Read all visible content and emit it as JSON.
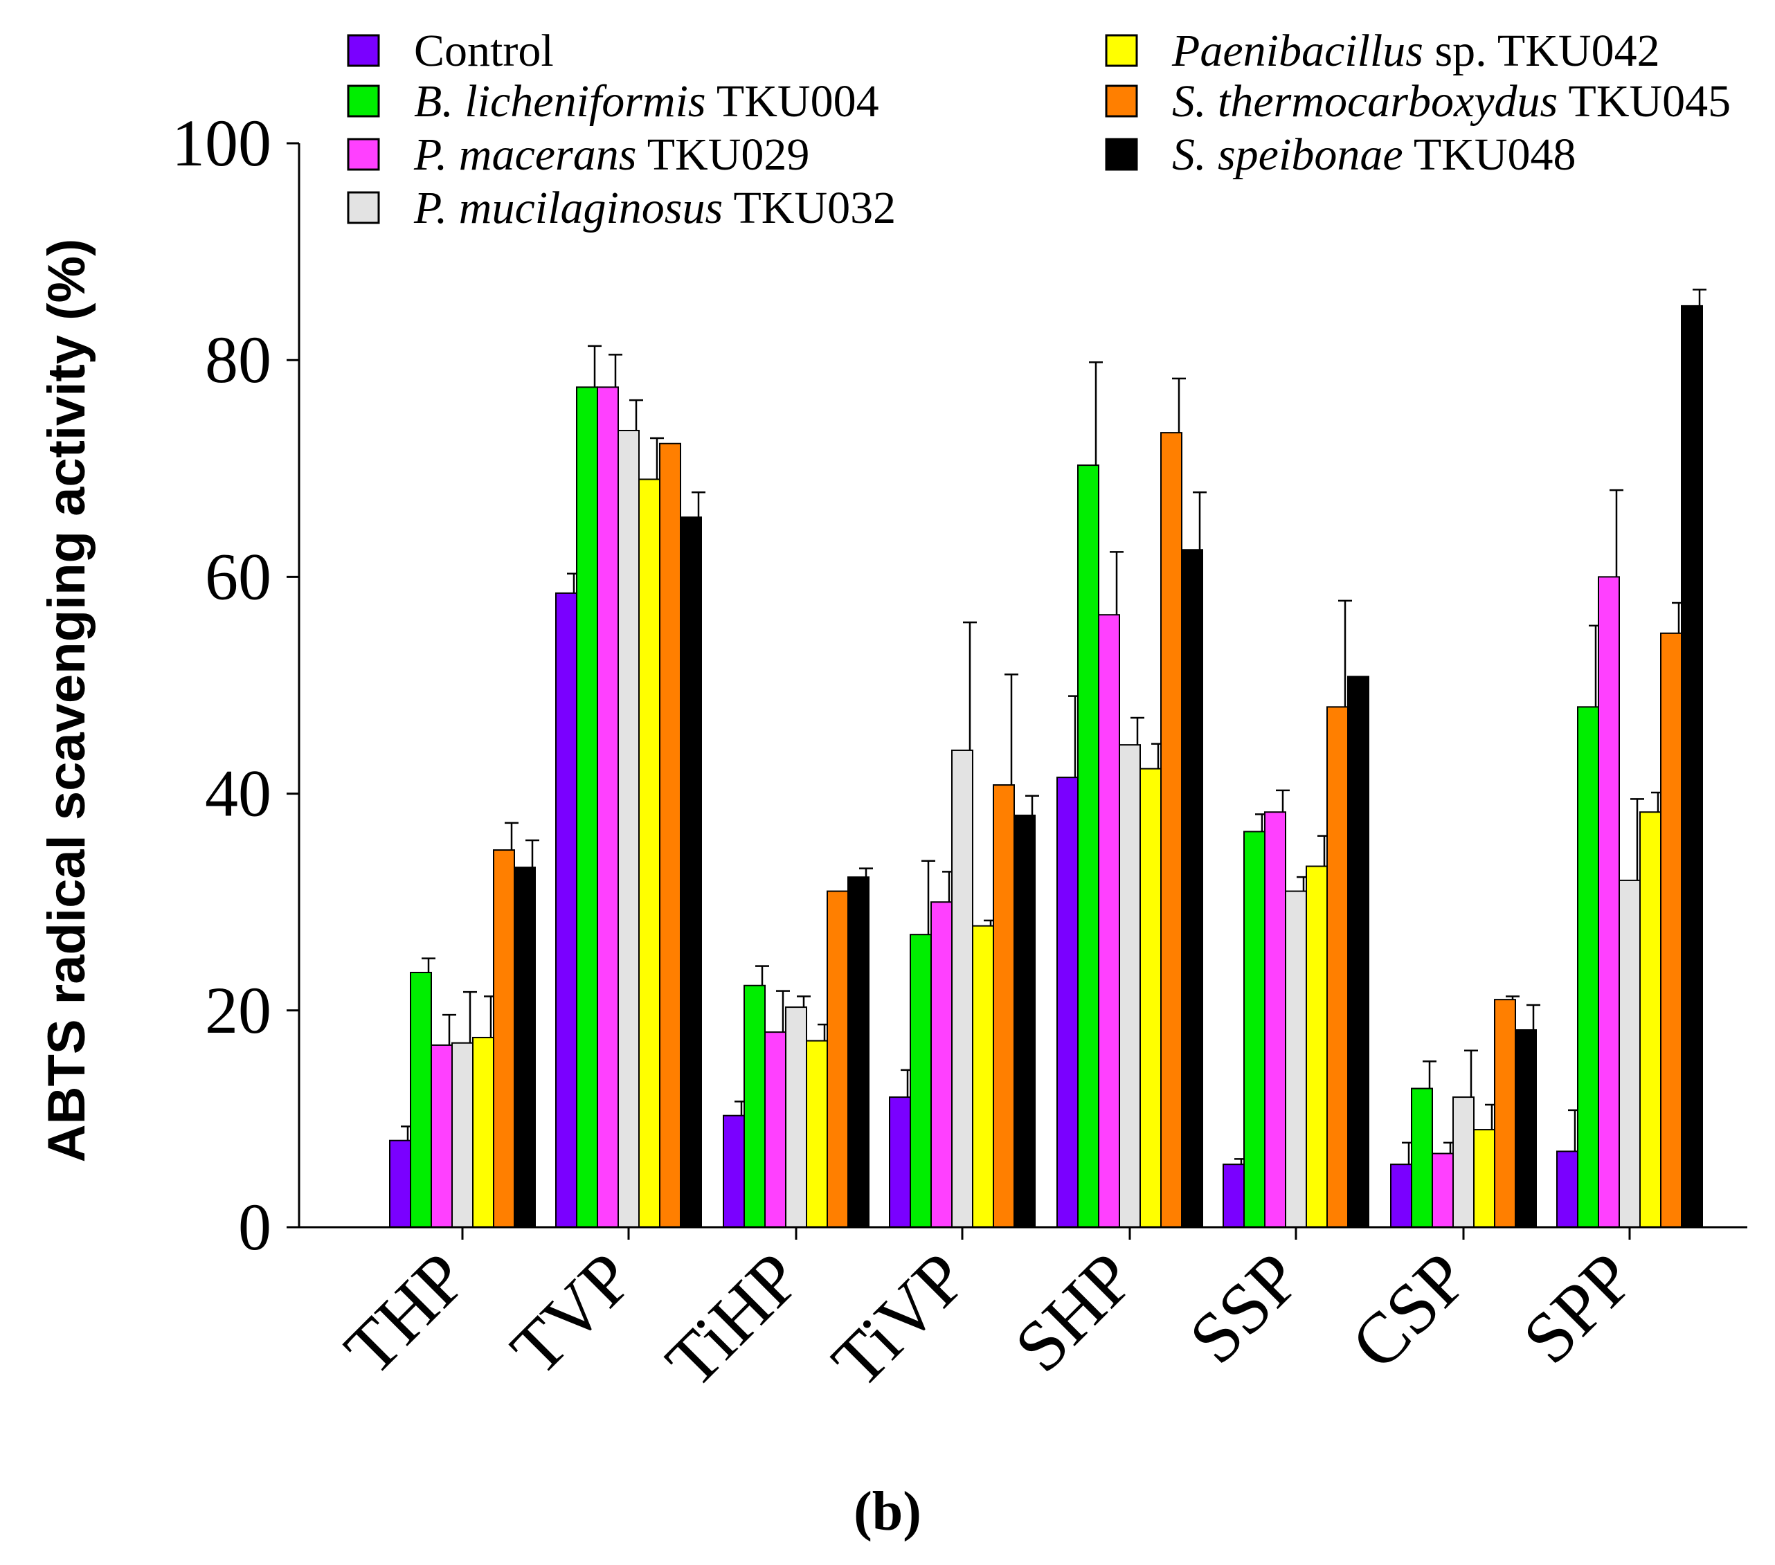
{
  "chart_data": {
    "type": "bar",
    "title": "",
    "xlabel": "",
    "ylabel": "ABTS radical scavenging activity (%)",
    "ylim": [
      0,
      100
    ],
    "yticks": [
      "0",
      "20",
      "40",
      "60",
      "80",
      "100"
    ],
    "categories": [
      "THP",
      "TVP",
      "TiHP",
      "TiVP",
      "SHP",
      "SSP",
      "CSP",
      "SPP"
    ],
    "legend_position": "top",
    "panel_label": "b",
    "panel_label_open": "(",
    "panel_label_close": ")",
    "series": [
      {
        "name_italic": "",
        "name_plain": "Control",
        "color": "#7a00ff",
        "values": [
          8,
          58.5,
          10.3,
          12,
          41.5,
          5.8,
          5.8,
          7
        ],
        "errors": [
          1.3,
          1.8,
          1.3,
          2.5,
          7.5,
          0.5,
          2.0,
          3.8
        ]
      },
      {
        "name_italic": "B. licheniformis",
        "name_plain": " TKU004",
        "color": "#00ee00",
        "values": [
          23.5,
          77.5,
          22.3,
          27,
          70.3,
          36.5,
          12.8,
          48
        ],
        "errors": [
          1.3,
          3.8,
          1.8,
          6.8,
          9.5,
          1.6,
          2.5,
          7.5
        ]
      },
      {
        "name_italic": "P. macerans",
        "name_plain": " TKU029",
        "color": "#ff40ff",
        "values": [
          16.8,
          77.5,
          18,
          30,
          56.5,
          38.3,
          6.8,
          60
        ],
        "errors": [
          2.8,
          3.0,
          3.8,
          2.8,
          5.8,
          2.0,
          1.0,
          8.0
        ]
      },
      {
        "name_italic": "P. mucilaginosus",
        "name_plain": " TKU032",
        "color": "#e3e3e3",
        "values": [
          17,
          73.5,
          20.3,
          44,
          44.5,
          31,
          12,
          32
        ],
        "errors": [
          4.7,
          2.8,
          1.0,
          11.8,
          2.5,
          1.3,
          4.3,
          7.5
        ]
      },
      {
        "name_italic": "Paenibacillus",
        "name_plain": " sp. TKU042",
        "color": "#ffff00",
        "values": [
          17.5,
          69,
          17.2,
          27.8,
          42.3,
          33.3,
          9,
          38.3
        ],
        "errors": [
          3.8,
          3.8,
          1.5,
          0.5,
          2.3,
          2.8,
          2.3,
          1.8
        ]
      },
      {
        "name_italic": "S. thermocarboxydus",
        "name_plain": " TKU045",
        "color": "#ff7f00",
        "values": [
          34.8,
          72.3,
          31,
          40.8,
          73.3,
          48,
          21,
          54.8
        ],
        "errors": [
          2.5,
          0,
          0,
          10.2,
          5.0,
          9.8,
          0.3,
          2.8
        ]
      },
      {
        "name_italic": "S. speibonae",
        "name_plain": " TKU048",
        "color": "#000000",
        "values": [
          33.2,
          65.5,
          32.3,
          38,
          62.5,
          50.8,
          18.2,
          85
        ],
        "errors": [
          2.5,
          2.3,
          0.8,
          1.8,
          5.3,
          0,
          2.3,
          1.5
        ]
      }
    ]
  }
}
